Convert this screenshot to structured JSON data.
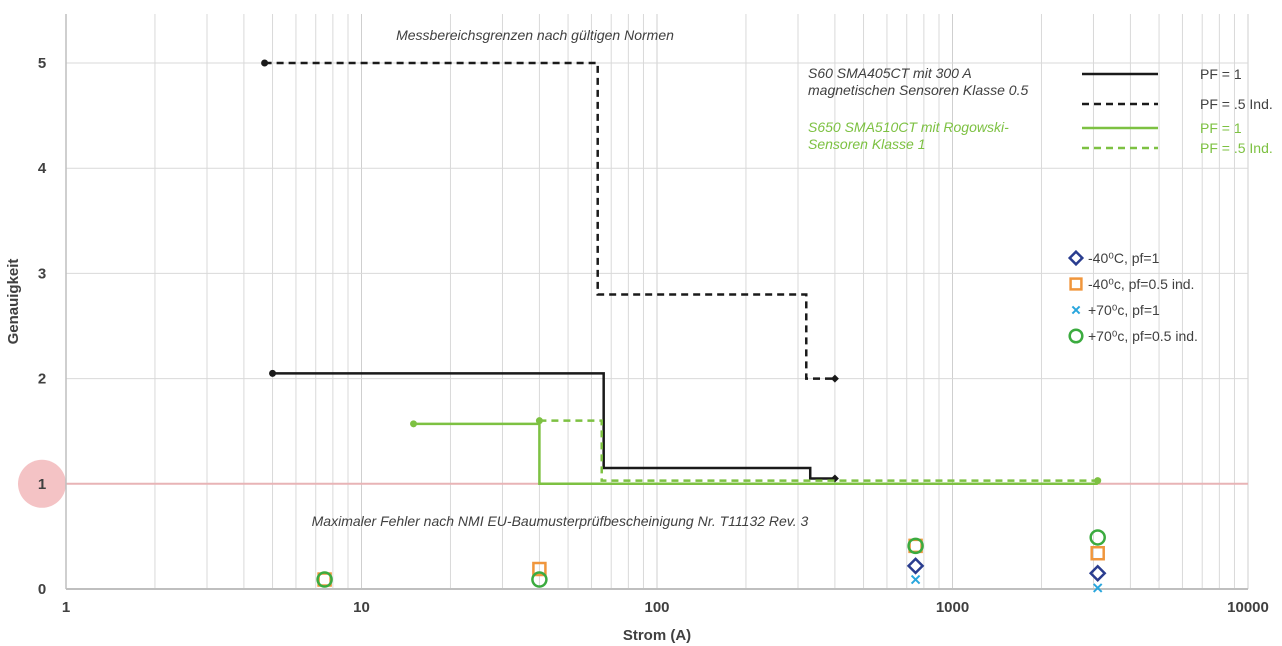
{
  "chart_data": {
    "type": "line",
    "xscale": "log",
    "xlim": [
      1,
      10000
    ],
    "ylim": [
      0,
      5.4
    ],
    "x_ticks": [
      1,
      10,
      100,
      1000,
      10000
    ],
    "x_tick_labels": [
      "1",
      "10",
      "100",
      "1000",
      "10000"
    ],
    "y_ticks": [
      0,
      1,
      2,
      3,
      4,
      5
    ],
    "y_tick_labels": [
      "0",
      "1",
      "2",
      "3",
      "4",
      "5"
    ],
    "xlabel": "Strom (A)",
    "ylabel": "Genauigkeit",
    "grid": true,
    "reference_line": {
      "y": 1,
      "color": "#e8b4b6",
      "label": "Maximaler Fehler nach NMI EU-Baumusterprüfbescheinigung Nr. T11132 Rev. 3"
    },
    "top_annotation": "Messbereichsgrenzen nach gültigen Normen",
    "legend_groups": [
      {
        "text": [
          "S60 SMA405CT mit 300 A",
          "magnetischen Sensoren Klasse 0.5"
        ],
        "color": "#404040"
      },
      {
        "text": [
          "S650 SMA510CT mit Rogowski-",
          "Sensoren Klasse 1"
        ],
        "color": "#7dc142"
      }
    ],
    "series": [
      {
        "name": "PF = 1",
        "group": 0,
        "color": "#1a1a1a",
        "dash": "solid",
        "start_marker": "dot",
        "end_marker": "diamond",
        "x": [
          5,
          66,
          66,
          330,
          330,
          400
        ],
        "y": [
          2.05,
          2.05,
          1.15,
          1.15,
          1.05,
          1.05
        ]
      },
      {
        "name": "PF = .5 Ind.",
        "group": 0,
        "color": "#1a1a1a",
        "dash": "dashed",
        "start_marker": "dot",
        "end_marker": "diamond",
        "x": [
          4.7,
          63,
          63,
          320,
          320,
          400
        ],
        "y": [
          5,
          5,
          2.8,
          2.8,
          2.0,
          2.0
        ]
      },
      {
        "name": "PF = 1",
        "group": 1,
        "color": "#7dc142",
        "dash": "solid",
        "start_marker": "dot",
        "end_marker": "none",
        "x": [
          15,
          40,
          40,
          3100
        ],
        "y": [
          1.57,
          1.57,
          1.0,
          1.0
        ]
      },
      {
        "name": "PF = .5 Ind.",
        "group": 1,
        "color": "#7dc142",
        "dash": "dashed",
        "start_marker": "dot",
        "end_marker": "dot",
        "x": [
          40,
          65,
          65,
          3100
        ],
        "y": [
          1.6,
          1.6,
          1.03,
          1.03
        ]
      }
    ],
    "scatter": [
      {
        "name": "-40⁰C, pf=1",
        "marker": "diamond",
        "color": "#2a3d8f",
        "points": [
          [
            750,
            0.22
          ],
          [
            3100,
            0.15
          ]
        ]
      },
      {
        "name": "-40⁰c, pf=0.5 ind.",
        "marker": "square",
        "color": "#f0963c",
        "points": [
          [
            7.5,
            0.09
          ],
          [
            40,
            0.19
          ],
          [
            750,
            0.41
          ],
          [
            3100,
            0.34
          ]
        ]
      },
      {
        "name": "+70⁰c, pf=1",
        "marker": "x",
        "color": "#29a6dd",
        "points": [
          [
            750,
            0.09
          ],
          [
            3100,
            0.01
          ]
        ]
      },
      {
        "name": "+70⁰c, pf=0.5 ind.",
        "marker": "circle",
        "color": "#3bab3f",
        "points": [
          [
            7.5,
            0.09
          ],
          [
            40,
            0.09
          ],
          [
            750,
            0.41
          ],
          [
            3100,
            0.49
          ]
        ]
      }
    ]
  }
}
